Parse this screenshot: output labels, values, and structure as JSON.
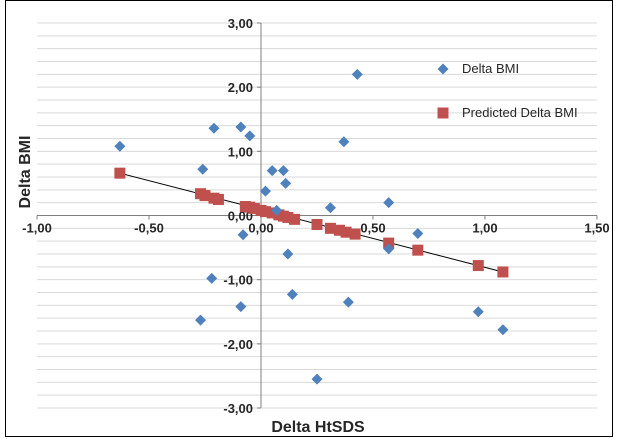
{
  "chart_data": {
    "type": "scatter",
    "xlabel": "Delta HtSDS",
    "ylabel": "Delta BMI",
    "xlim": [
      -1.0,
      1.5
    ],
    "ylim": [
      -3.0,
      3.0
    ],
    "x_ticks": [
      "-1,00",
      "-0,50",
      "0,00",
      "0,50",
      "1,00",
      "1,50"
    ],
    "y_ticks": [
      "3,00",
      "2,00",
      "1,00",
      "0,00",
      "-1,00",
      "-2,00",
      "-3,00"
    ],
    "grid": true,
    "legend_position": "top-right",
    "series": [
      {
        "name": "Delta BMI",
        "marker": "diamond",
        "color": "#4f81bd",
        "points": [
          [
            -0.63,
            1.08
          ],
          [
            -0.26,
            0.72
          ],
          [
            -0.21,
            1.36
          ],
          [
            -0.09,
            1.38
          ],
          [
            -0.05,
            1.24
          ],
          [
            0.02,
            0.38
          ],
          [
            0.05,
            0.7
          ],
          [
            0.1,
            0.7
          ],
          [
            0.11,
            0.5
          ],
          [
            0.07,
            0.08
          ],
          [
            0.31,
            0.12
          ],
          [
            0.37,
            1.15
          ],
          [
            0.43,
            2.2
          ],
          [
            0.57,
            0.2
          ],
          [
            0.7,
            -0.28
          ],
          [
            -0.08,
            -0.3
          ],
          [
            0.57,
            -0.52
          ],
          [
            0.12,
            -0.6
          ],
          [
            -0.22,
            -0.98
          ],
          [
            0.14,
            -1.23
          ],
          [
            0.39,
            -1.35
          ],
          [
            -0.09,
            -1.42
          ],
          [
            -0.27,
            -1.63
          ],
          [
            0.97,
            -1.5
          ],
          [
            1.08,
            -1.78
          ],
          [
            0.25,
            -2.55
          ]
        ]
      },
      {
        "name": "Predicted Delta BMI",
        "marker": "square",
        "color": "#c0504d",
        "points": [
          [
            -0.63,
            0.66
          ],
          [
            -0.27,
            0.34
          ],
          [
            -0.25,
            0.31
          ],
          [
            -0.21,
            0.27
          ],
          [
            -0.19,
            0.25
          ],
          [
            -0.07,
            0.14
          ],
          [
            -0.05,
            0.13
          ],
          [
            -0.03,
            0.11
          ],
          [
            0.0,
            0.08
          ],
          [
            0.02,
            0.06
          ],
          [
            0.05,
            0.04
          ],
          [
            0.08,
            0.01
          ],
          [
            0.1,
            -0.01
          ],
          [
            0.12,
            -0.03
          ],
          [
            0.15,
            -0.06
          ],
          [
            0.25,
            -0.14
          ],
          [
            0.31,
            -0.2
          ],
          [
            0.35,
            -0.23
          ],
          [
            0.38,
            -0.26
          ],
          [
            0.42,
            -0.29
          ],
          [
            0.57,
            -0.43
          ],
          [
            0.7,
            -0.54
          ],
          [
            0.97,
            -0.78
          ],
          [
            1.08,
            -0.88
          ]
        ]
      }
    ],
    "trendline": {
      "x": [
        -0.63,
        1.08
      ],
      "y": [
        0.66,
        -0.88
      ],
      "color": "#000000"
    }
  }
}
